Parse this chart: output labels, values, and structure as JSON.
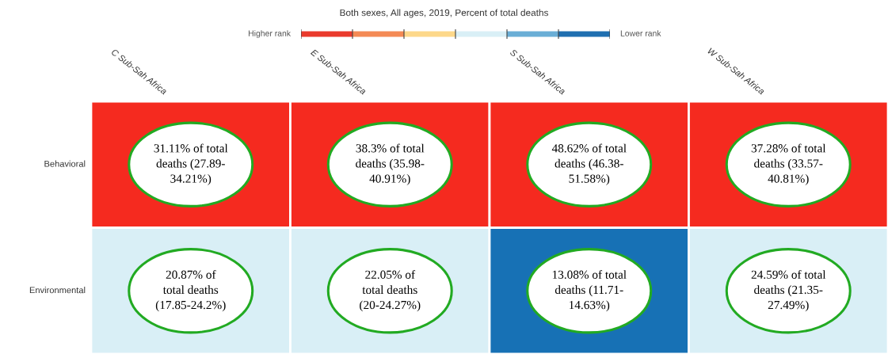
{
  "chart_data": [
    {
      "type": "heatmap",
      "title": "Both sexes, All ages, 2019, Percent of total deaths",
      "categories": [
        "C Sub-Sah Africa",
        "E Sub-Sah Africa",
        "S Sub-Sah Africa",
        "W Sub-Sah Africa"
      ],
      "y_categories": [
        "Behavioral",
        "Environmental"
      ],
      "cells": [
        [
          31.11,
          38.3,
          48.62,
          37.28
        ],
        [
          20.87,
          22.05,
          13.08,
          24.59
        ]
      ],
      "data_labels": true,
      "annotations": [
        "% of total\ndeaths (27.89-\n34.21%)",
        "% of total\ndeaths (35.98-\n40.91%)",
        "% of total\ndeaths (46.38-\n51.58%)",
        "% of total\ndeaths (33.57-\n40.81%)",
        "% of\ntotal deaths\n(17.85-24.2%)",
        "% of\ntotal deaths\n(20-24.27%)",
        "% of total\ndeaths (11.71-\n14.63%)",
        "% of total\ndeaths (21.35-\n27.49%)"
      ],
      "colors": [
        [
          "#f52a1f",
          "#f52a1f",
          "#f52a1f",
          "#f52a1f"
        ],
        [
          "#d9eff6",
          "#d9eff6",
          "#1771b5",
          "#d9eff6"
        ]
      ]
    },
    {
      "type": "other",
      "colors": [
        "#ea3a2c",
        "#f48a55",
        "#fdd88a",
        "#d9eff6",
        "#6aaed6",
        "#1f6fb0"
      ],
      "annotations": [
        "Higher rank",
        "Lower rank"
      ]
    }
  ]
}
